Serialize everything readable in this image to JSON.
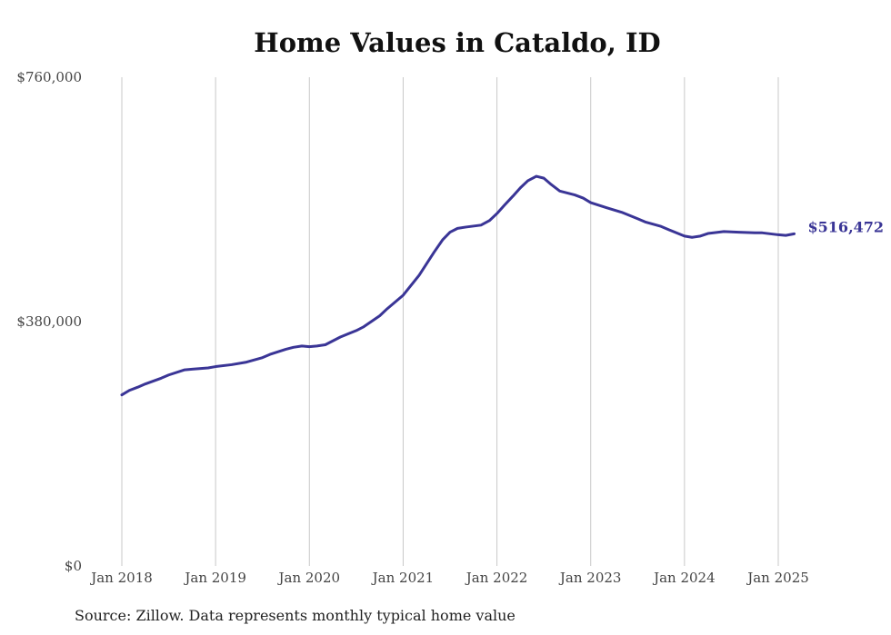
{
  "chart_data": {
    "type": "line",
    "title": "Home Values in Cataldo, ID",
    "source": "Source: Zillow. Data represents monthly typical home value",
    "y_ticks": [
      "$0",
      "$380,000",
      "$760,000"
    ],
    "ylim": [
      0,
      760000
    ],
    "x_ticks": [
      "Jan 2018",
      "Jan 2019",
      "Jan 2020",
      "Jan 2021",
      "Jan 2022",
      "Jan 2023",
      "Jan 2024",
      "Jan 2025"
    ],
    "xlim": [
      2018.0,
      2025.0
    ],
    "grid": "vertical",
    "line_color": "#3a3596",
    "end_label": "$516,472",
    "series": [
      {
        "name": "",
        "points": [
          [
            2018.0,
            266000
          ],
          [
            2018.08,
            273000
          ],
          [
            2018.17,
            278000
          ],
          [
            2018.25,
            283000
          ],
          [
            2018.42,
            292000
          ],
          [
            2018.5,
            297000
          ],
          [
            2018.67,
            305000
          ],
          [
            2018.75,
            306000
          ],
          [
            2018.92,
            308000
          ],
          [
            2019.0,
            310000
          ],
          [
            2019.17,
            313000
          ],
          [
            2019.33,
            317000
          ],
          [
            2019.5,
            324000
          ],
          [
            2019.58,
            329000
          ],
          [
            2019.75,
            337000
          ],
          [
            2019.83,
            340000
          ],
          [
            2019.92,
            342000
          ],
          [
            2020.0,
            341000
          ],
          [
            2020.08,
            342000
          ],
          [
            2020.17,
            344000
          ],
          [
            2020.25,
            350000
          ],
          [
            2020.33,
            356000
          ],
          [
            2020.5,
            366000
          ],
          [
            2020.58,
            372000
          ],
          [
            2020.75,
            389000
          ],
          [
            2020.83,
            400000
          ],
          [
            2021.0,
            421000
          ],
          [
            2021.17,
            452000
          ],
          [
            2021.33,
            488000
          ],
          [
            2021.42,
            507000
          ],
          [
            2021.5,
            519000
          ],
          [
            2021.58,
            525000
          ],
          [
            2021.67,
            527000
          ],
          [
            2021.83,
            530000
          ],
          [
            2021.92,
            537000
          ],
          [
            2022.0,
            548000
          ],
          [
            2022.08,
            561000
          ],
          [
            2022.17,
            575000
          ],
          [
            2022.25,
            588000
          ],
          [
            2022.33,
            599000
          ],
          [
            2022.42,
            606000
          ],
          [
            2022.5,
            603000
          ],
          [
            2022.58,
            593000
          ],
          [
            2022.67,
            583000
          ],
          [
            2022.75,
            580000
          ],
          [
            2022.83,
            577000
          ],
          [
            2022.92,
            572000
          ],
          [
            2023.0,
            565000
          ],
          [
            2023.17,
            557000
          ],
          [
            2023.33,
            550000
          ],
          [
            2023.5,
            540000
          ],
          [
            2023.58,
            535000
          ],
          [
            2023.75,
            528000
          ],
          [
            2023.83,
            523000
          ],
          [
            2024.0,
            513000
          ],
          [
            2024.08,
            511000
          ],
          [
            2024.17,
            513000
          ],
          [
            2024.25,
            517000
          ],
          [
            2024.42,
            520000
          ],
          [
            2024.58,
            519000
          ],
          [
            2024.75,
            518000
          ],
          [
            2024.83,
            518000
          ],
          [
            2025.0,
            515000
          ],
          [
            2025.08,
            514000
          ],
          [
            2025.17,
            516472
          ]
        ]
      }
    ]
  }
}
